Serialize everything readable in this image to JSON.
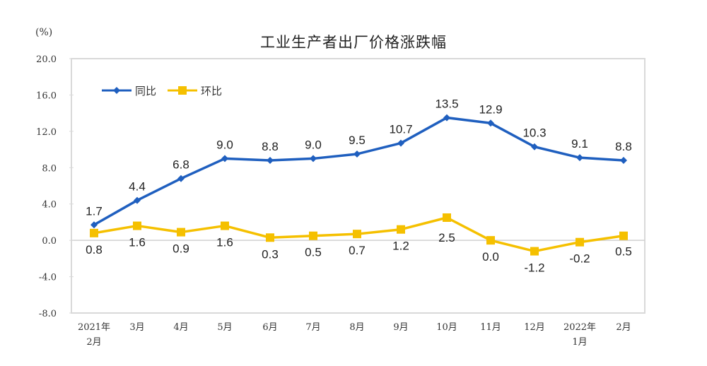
{
  "chart_data": {
    "type": "line",
    "title": "工业生产者出厂价格涨跌幅",
    "ylabel": "(%)",
    "xlabel": "",
    "ylim": [
      -8.0,
      20.0
    ],
    "yticks": [
      "20.0",
      "16.0",
      "12.0",
      "8.0",
      "4.0",
      "0.0",
      "-4.0",
      "-8.0"
    ],
    "categories": [
      [
        "2021年",
        "2月"
      ],
      [
        "3月"
      ],
      [
        "4月"
      ],
      [
        "5月"
      ],
      [
        "6月"
      ],
      [
        "7月"
      ],
      [
        "8月"
      ],
      [
        "9月"
      ],
      [
        "10月"
      ],
      [
        "11月"
      ],
      [
        "12月"
      ],
      [
        "2022年",
        "1月"
      ],
      [
        "2月"
      ]
    ],
    "series": [
      {
        "name": "同比",
        "color": "#1f5fbf",
        "marker": "diamond",
        "values": [
          1.7,
          4.4,
          6.8,
          9.0,
          8.8,
          9.0,
          9.5,
          10.7,
          13.5,
          12.9,
          10.3,
          9.1,
          8.8
        ]
      },
      {
        "name": "环比",
        "color": "#f5c000",
        "marker": "square",
        "values": [
          0.8,
          1.6,
          0.9,
          1.6,
          0.3,
          0.5,
          0.7,
          1.2,
          2.5,
          0.0,
          -1.2,
          -0.2,
          0.5
        ]
      }
    ],
    "legend_position": "top-left inside",
    "grid": false
  }
}
